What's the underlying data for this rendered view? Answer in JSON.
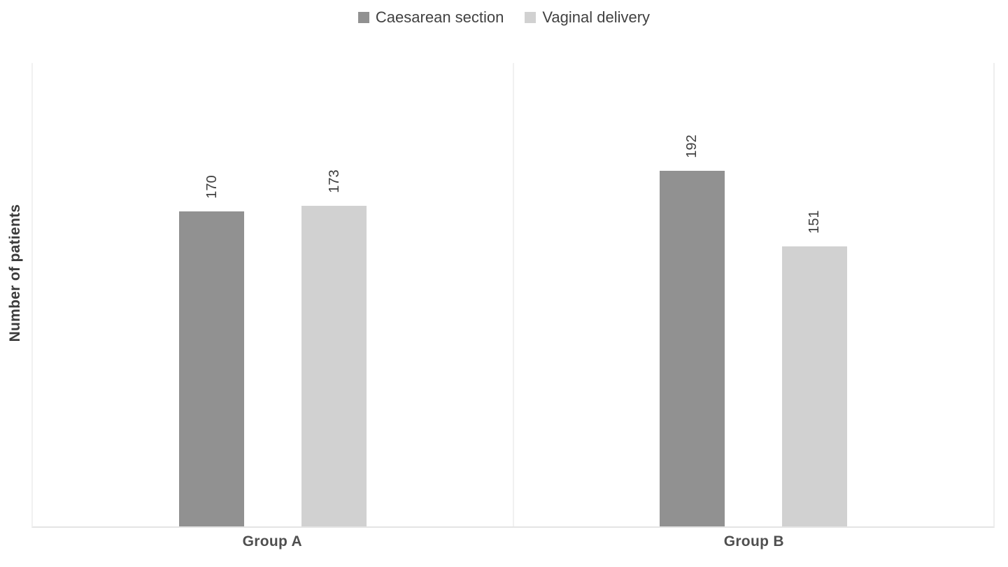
{
  "chart_data": {
    "type": "bar",
    "categories": [
      "Group A",
      "Group B"
    ],
    "series": [
      {
        "name": "Caesarean section",
        "color": "#919191",
        "values": [
          170,
          192
        ]
      },
      {
        "name": "Vaginal delivery",
        "color": "#d1d1d1",
        "values": [
          173,
          151
        ]
      }
    ],
    "ylabel": "Number of patients",
    "ylim": [
      0,
      250
    ],
    "grid": false,
    "legend_position": "top-center",
    "data_labels_shown": true,
    "data_label_rotation_deg": -90
  }
}
